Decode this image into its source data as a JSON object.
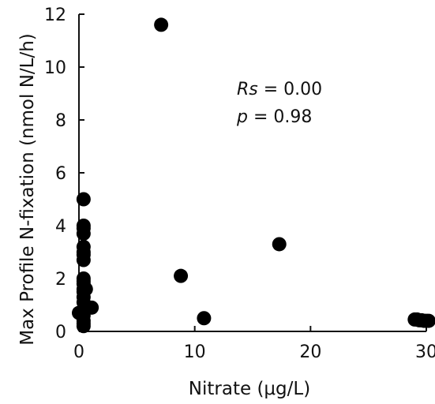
{
  "chart_data": {
    "type": "scatter",
    "title": "",
    "xlabel": "Nitrate (μg/L)",
    "ylabel": "Max Profile N-fixation (nmol N/L/h)",
    "xlim": [
      0,
      30
    ],
    "ylim": [
      0,
      12
    ],
    "xticks": [
      "0",
      "10",
      "20",
      "30"
    ],
    "yticks": [
      "0",
      "2",
      "4",
      "6",
      "8",
      "10",
      "12"
    ],
    "grid": false,
    "marker_color": "#000000",
    "annotations": {
      "rs_symbol": "Rs",
      "rs_value": " = 0.00",
      "p_symbol": "p",
      "p_value": " = 0.98"
    },
    "series": [
      {
        "x": [
          7.1,
          0.4,
          0.4,
          0.4,
          0.4,
          0.4,
          0.4,
          0.4,
          0.4,
          0.4,
          0.4,
          0.4,
          0.4,
          0.4,
          0.6,
          0.4,
          0.4,
          1.1,
          0.0,
          0.4,
          0.4,
          0.4,
          0.4,
          8.8,
          17.3,
          10.8,
          29.0,
          29.2,
          29.4,
          29.6,
          29.8,
          30.0,
          30.2
        ],
        "y": [
          11.6,
          5.0,
          4.0,
          3.9,
          3.7,
          3.2,
          3.0,
          2.9,
          2.7,
          2.0,
          1.9,
          1.8,
          1.6,
          1.5,
          1.6,
          1.3,
          1.1,
          0.9,
          0.7,
          0.6,
          0.4,
          0.3,
          0.2,
          2.1,
          3.3,
          0.5,
          0.45,
          0.45,
          0.42,
          0.42,
          0.4,
          0.4,
          0.4
        ]
      }
    ]
  }
}
